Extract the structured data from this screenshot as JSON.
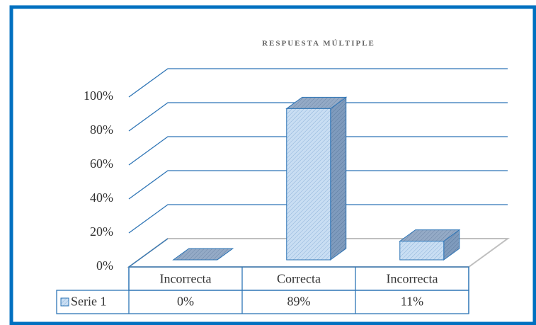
{
  "chart_data": {
    "type": "bar3d",
    "title": "RESPUESTA MÚLTIPLE",
    "categories": [
      "Incorrecta",
      "Correcta",
      "Incorrecta"
    ],
    "series": [
      {
        "name": "Serie 1",
        "color": "#bdd7ee",
        "values": [
          0,
          89,
          11
        ],
        "value_labels": [
          "0%",
          "89%",
          "11%"
        ]
      }
    ],
    "ylim": [
      0,
      100
    ],
    "yticks": [
      {
        "value": 0,
        "label": "0%"
      },
      {
        "value": 20,
        "label": "20%"
      },
      {
        "value": 40,
        "label": "40%"
      },
      {
        "value": 60,
        "label": "60%"
      },
      {
        "value": 80,
        "label": "80%"
      },
      {
        "value": 100,
        "label": "100%"
      }
    ],
    "grid": true
  }
}
